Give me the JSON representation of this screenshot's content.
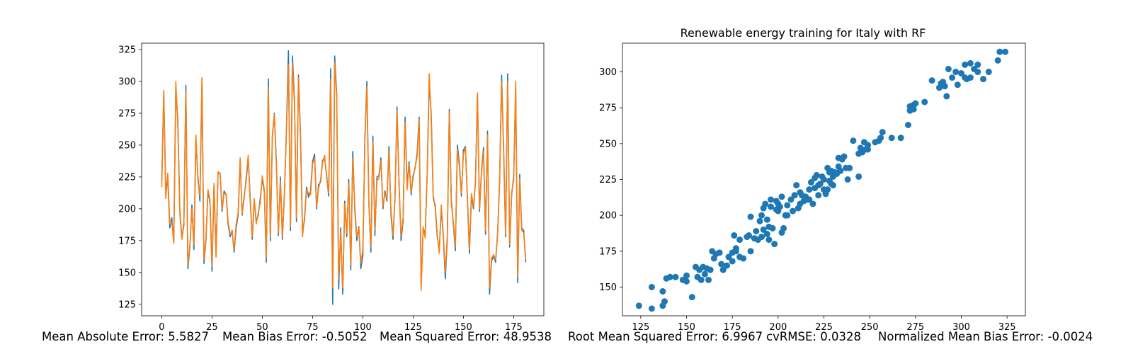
{
  "chart_data": [
    {
      "type": "line",
      "title": "",
      "xlabel": "",
      "ylabel": "",
      "xlim": [
        -10,
        190
      ],
      "ylim": [
        116,
        330
      ],
      "xticks": [
        0,
        25,
        50,
        75,
        100,
        125,
        150,
        175
      ],
      "yticks": [
        125,
        150,
        175,
        200,
        225,
        250,
        275,
        300,
        325
      ],
      "grid": false,
      "series": [
        {
          "color": "#1f77b4",
          "values": [
            222,
            291,
            215,
            224,
            185,
            193,
            174,
            295,
            270,
            199,
            177,
            187,
            297,
            153,
            170,
            203,
            168,
            253,
            225,
            206,
            300,
            157,
            176,
            214,
            205,
            151,
            218,
            165,
            228,
            228,
            198,
            214,
            211,
            188,
            178,
            183,
            166,
            185,
            195,
            238,
            195,
            210,
            222,
            240,
            208,
            176,
            207,
            190,
            195,
            208,
            224,
            213,
            158,
            302,
            175,
            256,
            275,
            237,
            179,
            225,
            176,
            211,
            262,
            324,
            183,
            320,
            286,
            190,
            305,
            258,
            182,
            191,
            217,
            209,
            214,
            237,
            243,
            200,
            219,
            221,
            238,
            240,
            226,
            210,
            310,
            125,
            320,
            290,
            137,
            185,
            133,
            206,
            178,
            223,
            152,
            245,
            199,
            175,
            186,
            153,
            163,
            255,
            300,
            205,
            166,
            257,
            179,
            225,
            226,
            240,
            200,
            214,
            206,
            249,
            195,
            176,
            209,
            280,
            220,
            175,
            190,
            272,
            218,
            237,
            211,
            226,
            232,
            244,
            272,
            140,
            185,
            180,
            227,
            300,
            274,
            210,
            201,
            178,
            168,
            200,
            178,
            145,
            176,
            278,
            207,
            188,
            167,
            250,
            236,
            210,
            246,
            249,
            207,
            165,
            210,
            200,
            222,
            290,
            198,
            230,
            248,
            180,
            261,
            133,
            159,
            163,
            158,
            181,
            220,
            305,
            246,
            178,
            306,
            170,
            211,
            225,
            294,
            142,
            227,
            185,
            183,
            158
          ],
          "values_note": ""
        },
        {
          "color": "#ff7f0e",
          "values": [
            217,
            293,
            208,
            228,
            188,
            190,
            173,
            300,
            265,
            196,
            176,
            190,
            292,
            156,
            172,
            200,
            172,
            258,
            222,
            210,
            303,
            160,
            178,
            215,
            207,
            155,
            220,
            162,
            229,
            228,
            200,
            212,
            212,
            190,
            180,
            182,
            168,
            188,
            197,
            240,
            196,
            208,
            225,
            242,
            205,
            178,
            208,
            188,
            197,
            205,
            226,
            215,
            162,
            295,
            178,
            258,
            274,
            234,
            181,
            222,
            178,
            213,
            260,
            313,
            186,
            315,
            282,
            193,
            303,
            255,
            178,
            194,
            215,
            212,
            211,
            235,
            240,
            202,
            216,
            223,
            236,
            242,
            224,
            212,
            302,
            138,
            315,
            287,
            145,
            182,
            138,
            204,
            181,
            220,
            156,
            240,
            202,
            178,
            185,
            157,
            168,
            252,
            296,
            203,
            170,
            253,
            183,
            222,
            224,
            238,
            202,
            212,
            208,
            245,
            198,
            179,
            210,
            277,
            218,
            178,
            193,
            268,
            215,
            235,
            213,
            224,
            233,
            241,
            270,
            136,
            186,
            177,
            228,
            306,
            270,
            208,
            203,
            180,
            165,
            203,
            180,
            150,
            179,
            276,
            204,
            190,
            170,
            247,
            233,
            212,
            243,
            248,
            209,
            168,
            212,
            202,
            220,
            291,
            200,
            228,
            245,
            183,
            258,
            138,
            161,
            164,
            160,
            179,
            223,
            300,
            248,
            180,
            300,
            172,
            213,
            222,
            300,
            147,
            224,
            183,
            181,
            160
          ]
        }
      ]
    },
    {
      "type": "scatter",
      "title": "Renewable energy training for Italy with RF",
      "xlabel": "",
      "ylabel": "",
      "xlim": [
        115,
        335
      ],
      "ylim": [
        130,
        320
      ],
      "xticks": [
        125,
        150,
        175,
        200,
        225,
        250,
        275,
        300,
        325
      ],
      "yticks": [
        150,
        175,
        200,
        225,
        250,
        275,
        300
      ],
      "grid": false,
      "color": "#1f77b4",
      "points": [
        [
          124,
          137
        ],
        [
          131,
          135
        ],
        [
          131,
          150
        ],
        [
          137,
          147
        ],
        [
          137,
          137
        ],
        [
          138,
          140
        ],
        [
          139,
          156
        ],
        [
          141,
          157
        ],
        [
          144,
          157
        ],
        [
          148,
          155
        ],
        [
          150,
          158
        ],
        [
          150,
          154
        ],
        [
          153,
          143
        ],
        [
          155,
          164
        ],
        [
          156,
          157
        ],
        [
          157,
          162
        ],
        [
          158,
          155
        ],
        [
          159,
          164
        ],
        [
          160,
          159
        ],
        [
          161,
          163
        ],
        [
          162,
          155
        ],
        [
          163,
          162
        ],
        [
          164,
          175
        ],
        [
          165,
          170
        ],
        [
          166,
          173
        ],
        [
          168,
          174
        ],
        [
          169,
          166
        ],
        [
          170,
          162
        ],
        [
          172,
          165
        ],
        [
          173,
          171
        ],
        [
          175,
          174
        ],
        [
          175,
          168
        ],
        [
          176,
          186
        ],
        [
          177,
          177
        ],
        [
          177,
          175
        ],
        [
          179,
          183
        ],
        [
          179,
          171
        ],
        [
          181,
          170
        ],
        [
          183,
          185
        ],
        [
          184,
          186
        ],
        [
          185,
          175
        ],
        [
          185,
          199
        ],
        [
          187,
          184
        ],
        [
          188,
          189
        ],
        [
          189,
          183
        ],
        [
          190,
          196
        ],
        [
          191,
          185
        ],
        [
          191,
          200
        ],
        [
          192,
          190
        ],
        [
          192,
          205
        ],
        [
          193,
          208
        ],
        [
          194,
          197
        ],
        [
          194,
          187
        ],
        [
          195,
          183
        ],
        [
          195,
          192
        ],
        [
          196,
          211
        ],
        [
          196,
          206
        ],
        [
          197,
          191
        ],
        [
          198,
          180
        ],
        [
          199,
          204
        ],
        [
          199,
          210
        ],
        [
          200,
          203
        ],
        [
          200,
          208
        ],
        [
          201,
          206
        ],
        [
          202,
          188
        ],
        [
          202,
          213
        ],
        [
          203,
          191
        ],
        [
          204,
          200
        ],
        [
          205,
          207
        ],
        [
          205,
          200
        ],
        [
          207,
          211
        ],
        [
          208,
          203
        ],
        [
          209,
          214
        ],
        [
          210,
          221
        ],
        [
          211,
          205
        ],
        [
          212,
          208
        ],
        [
          212,
          216
        ],
        [
          213,
          214
        ],
        [
          214,
          210
        ],
        [
          215,
          213
        ],
        [
          216,
          211
        ],
        [
          217,
          211
        ],
        [
          217,
          218
        ],
        [
          218,
          223
        ],
        [
          219,
          208
        ],
        [
          220,
          219
        ],
        [
          220,
          226
        ],
        [
          221,
          228
        ],
        [
          222,
          221
        ],
        [
          222,
          214
        ],
        [
          223,
          222
        ],
        [
          224,
          227
        ],
        [
          225,
          218
        ],
        [
          225,
          225
        ],
        [
          226,
          215
        ],
        [
          227,
          233
        ],
        [
          227,
          218
        ],
        [
          228,
          230
        ],
        [
          228,
          224
        ],
        [
          229,
          231
        ],
        [
          229,
          222
        ],
        [
          230,
          221
        ],
        [
          230,
          227
        ],
        [
          231,
          230
        ],
        [
          232,
          229
        ],
        [
          233,
          234
        ],
        [
          233,
          240
        ],
        [
          234,
          231
        ],
        [
          235,
          239
        ],
        [
          236,
          241
        ],
        [
          237,
          233
        ],
        [
          238,
          225
        ],
        [
          239,
          233
        ],
        [
          241,
          252
        ],
        [
          244,
          243
        ],
        [
          244,
          227
        ],
        [
          245,
          247
        ],
        [
          246,
          244
        ],
        [
          247,
          251
        ],
        [
          248,
          246
        ],
        [
          249,
          249
        ],
        [
          249,
          246
        ],
        [
          253,
          251
        ],
        [
          255,
          252
        ],
        [
          256,
          254
        ],
        [
          257,
          258
        ],
        [
          262,
          254
        ],
        [
          267,
          254
        ],
        [
          271,
          263
        ],
        [
          272,
          273
        ],
        [
          272,
          276
        ],
        [
          273,
          275
        ],
        [
          274,
          274
        ],
        [
          274,
          277
        ],
        [
          275,
          278
        ],
        [
          280,
          279
        ],
        [
          284,
          294
        ],
        [
          288,
          289
        ],
        [
          289,
          292
        ],
        [
          290,
          293
        ],
        [
          291,
          290
        ],
        [
          292,
          283
        ],
        [
          293,
          302
        ],
        [
          295,
          296
        ],
        [
          297,
          300
        ],
        [
          298,
          291
        ],
        [
          300,
          299
        ],
        [
          302,
          296
        ],
        [
          302,
          305
        ],
        [
          303,
          295
        ],
        [
          305,
          296
        ],
        [
          305,
          306
        ],
        [
          307,
          302
        ],
        [
          309,
          300
        ],
        [
          309,
          305
        ],
        [
          312,
          295
        ],
        [
          315,
          300
        ],
        [
          320,
          308
        ],
        [
          321,
          314
        ],
        [
          324,
          314
        ]
      ]
    }
  ],
  "metrics": {
    "mae": "Mean Absolute Error: 5.5827",
    "mbe": "Mean Bias Error: -0.5052",
    "mse": "Mean Squared Error: 48.9538",
    "rmse": "Root Mean Squared Error: 6.9967",
    "cvrmse": "cvRMSE: 0.0328",
    "nmbe": "Normalized Mean Bias Error: -0.0024"
  }
}
